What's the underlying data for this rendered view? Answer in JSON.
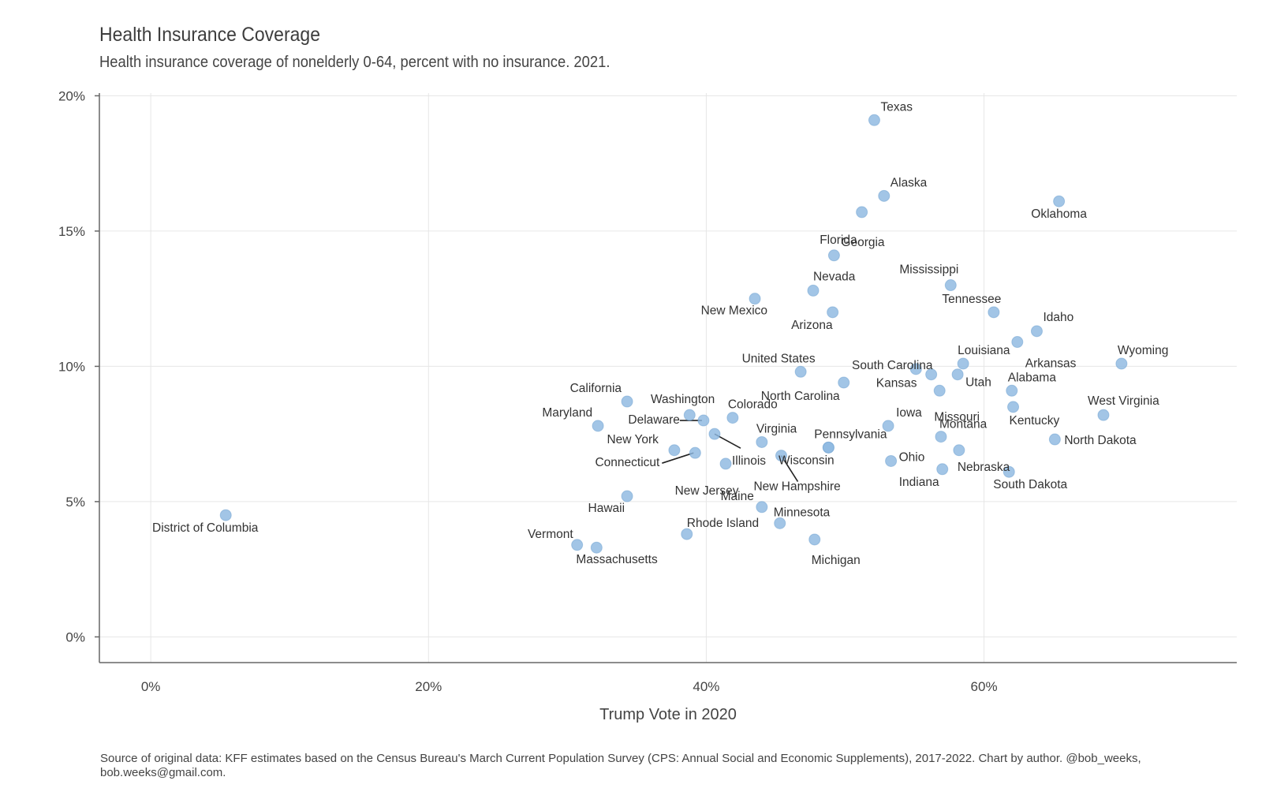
{
  "title": "Health Insurance Coverage",
  "subtitle": "Health insurance coverage of nonelderly 0-64, percent with no insurance. 2021.",
  "caption": "Source of original data: KFF estimates based on the Census Bureau's March Current Population Survey (CPS: Annual Social and Economic Supplements), 2017-2022. Chart by author. @bob_weeks, bob.weeks@gmail.com.",
  "colors": {
    "point": "#8db8e0",
    "point_stroke": "#6b9fd0",
    "grid": "#e6e6e6",
    "axis": "#666666"
  },
  "chart_data": {
    "type": "scatter",
    "title": "Health Insurance Coverage",
    "subtitle": "Health insurance coverage of nonelderly 0-64, percent with no insurance. 2021.",
    "xlabel": "Trump Vote in 2020",
    "ylabel": "",
    "xlim": [
      -3.7,
      78.2
    ],
    "ylim": [
      -0.95,
      20.1
    ],
    "xticks": [
      0,
      20,
      40,
      60
    ],
    "xtick_labels": [
      "0%",
      "20%",
      "40%",
      "60%"
    ],
    "yticks": [
      0,
      5,
      10,
      15,
      20
    ],
    "ytick_labels": [
      "0%",
      "5%",
      "10%",
      "15%",
      "20%"
    ],
    "grid": true,
    "points": [
      {
        "label": "Texas",
        "x": 52.1,
        "y": 19.1
      },
      {
        "label": "Alaska",
        "x": 52.8,
        "y": 16.3
      },
      {
        "label": "Oklahoma",
        "x": 65.4,
        "y": 16.1
      },
      {
        "label": "Florida",
        "x": 51.2,
        "y": 15.7
      },
      {
        "label": "Georgia",
        "x": 49.2,
        "y": 14.1
      },
      {
        "label": "Mississippi",
        "x": 57.6,
        "y": 13.0
      },
      {
        "label": "Nevada",
        "x": 47.7,
        "y": 12.8
      },
      {
        "label": "New Mexico",
        "x": 43.5,
        "y": 12.5
      },
      {
        "label": "Arizona",
        "x": 49.1,
        "y": 12.0
      },
      {
        "label": "Tennessee",
        "x": 60.7,
        "y": 12.0
      },
      {
        "label": "Idaho",
        "x": 63.8,
        "y": 11.3
      },
      {
        "label": "Arkansas",
        "x": 62.4,
        "y": 10.9
      },
      {
        "label": "Wyoming",
        "x": 69.9,
        "y": 10.1
      },
      {
        "label": "Louisiana",
        "x": 58.5,
        "y": 10.1
      },
      {
        "label": "South Carolina",
        "x": 55.1,
        "y": 9.9
      },
      {
        "label": "United States",
        "x": 46.8,
        "y": 9.8
      },
      {
        "label": "Kansas",
        "x": 56.2,
        "y": 9.7
      },
      {
        "label": "Utah",
        "x": 58.1,
        "y": 9.7
      },
      {
        "label": "North Carolina",
        "x": 49.9,
        "y": 9.4
      },
      {
        "label": "Missouri",
        "x": 56.8,
        "y": 9.1
      },
      {
        "label": "Alabama",
        "x": 62.0,
        "y": 9.1
      },
      {
        "label": "California",
        "x": 34.3,
        "y": 8.7
      },
      {
        "label": "Kentucky",
        "x": 62.1,
        "y": 8.5
      },
      {
        "label": "West Virginia",
        "x": 68.6,
        "y": 8.2
      },
      {
        "label": "Washington",
        "x": 38.8,
        "y": 8.2
      },
      {
        "label": "Colorado",
        "x": 41.9,
        "y": 8.1
      },
      {
        "label": "Delaware",
        "x": 39.8,
        "y": 8.0
      },
      {
        "label": "Maryland",
        "x": 32.2,
        "y": 7.8
      },
      {
        "label": "Iowa",
        "x": 53.1,
        "y": 7.8
      },
      {
        "label": "Illinois",
        "x": 40.6,
        "y": 7.5
      },
      {
        "label": "Montana",
        "x": 56.9,
        "y": 7.4
      },
      {
        "label": "North Dakota",
        "x": 65.1,
        "y": 7.3
      },
      {
        "label": "Virginia",
        "x": 44.0,
        "y": 7.2
      },
      {
        "label": "Pennsylvania",
        "x": 48.8,
        "y": 7.0
      },
      {
        "label": "Wisconsin",
        "x": 48.8,
        "y": 7.0
      },
      {
        "label": "New York",
        "x": 37.7,
        "y": 6.9
      },
      {
        "label": "Nebraska",
        "x": 58.2,
        "y": 6.9
      },
      {
        "label": "Connecticut",
        "x": 39.2,
        "y": 6.8
      },
      {
        "label": "New Hampshire",
        "x": 45.4,
        "y": 6.7
      },
      {
        "label": "Ohio",
        "x": 53.3,
        "y": 6.5
      },
      {
        "label": "New Jersey",
        "x": 41.4,
        "y": 6.4
      },
      {
        "label": "Indiana",
        "x": 57.0,
        "y": 6.2
      },
      {
        "label": "South Dakota",
        "x": 61.8,
        "y": 6.1
      },
      {
        "label": "Hawaii",
        "x": 34.3,
        "y": 5.2
      },
      {
        "label": "Maine",
        "x": 44.0,
        "y": 4.8
      },
      {
        "label": "District of Columbia",
        "x": 5.4,
        "y": 4.5
      },
      {
        "label": "Minnesota",
        "x": 45.3,
        "y": 4.2
      },
      {
        "label": "Rhode Island",
        "x": 38.6,
        "y": 3.8
      },
      {
        "label": "Michigan",
        "x": 47.8,
        "y": 3.6
      },
      {
        "label": "Vermont",
        "x": 30.7,
        "y": 3.4
      },
      {
        "label": "Massachusetts",
        "x": 32.1,
        "y": 3.3
      }
    ]
  }
}
